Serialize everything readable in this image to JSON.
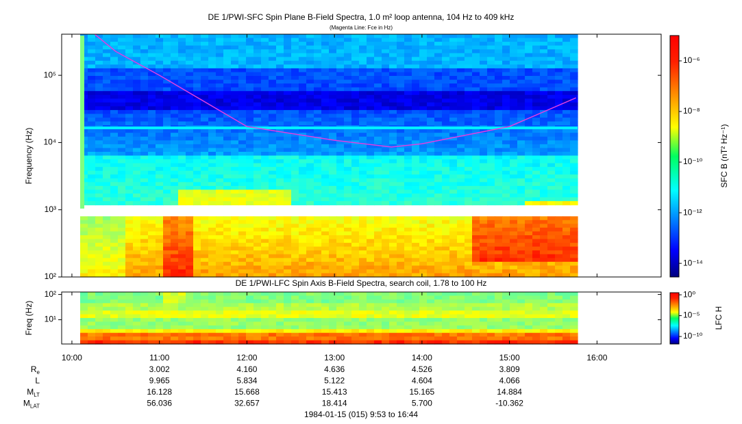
{
  "chart_data": [
    {
      "type": "spectrogram",
      "title": "DE 1/PWI-SFC  Spin Plane B-Field Spectra, 1.0 m² loop antenna, 104 Hz to 409 kHz",
      "subtitle": "(Magenta Line: Fce in Hz)",
      "y_label": "Frequency (Hz)",
      "colorbar_label": "SFC B (nT² Hz⁻¹)",
      "ylog": true,
      "ylim": [
        100,
        409000
      ],
      "yticks": [
        {
          "value": 100,
          "label": "10²"
        },
        {
          "value": 1000,
          "label": "10³"
        },
        {
          "value": 10000,
          "label": "10⁴"
        },
        {
          "value": 100000,
          "label": "10⁵"
        }
      ],
      "zlog": true,
      "zlim": [
        2.9e-15,
        1e-05
      ],
      "zticks": [
        {
          "value": 1e-06,
          "label": "10⁻⁶"
        },
        {
          "value": 1e-08,
          "label": "10⁻⁸"
        },
        {
          "value": 1e-10,
          "label": "10⁻¹⁰"
        },
        {
          "value": 1e-12,
          "label": "10⁻¹²"
        },
        {
          "value": 1e-14,
          "label": "10⁻¹⁴"
        }
      ],
      "fce_line": {
        "color": "#e040e0",
        "x": [
          10.26,
          10.5,
          11.0,
          12.0,
          13.0,
          13.65,
          14.0,
          15.0,
          15.76
        ],
        "values": [
          409000,
          227000,
          100000,
          17300,
          10800,
          8570,
          9600,
          17300,
          46200
        ]
      }
    },
    {
      "type": "spectrogram",
      "title": "DE 1/PWI-LFC  Spin Axis B-Field Spectra, search coil, 1.78 to 100 Hz",
      "y_label": "Freq (Hz)",
      "colorbar_label": "LFC H",
      "ylog": true,
      "ylim": [
        1.1,
        125
      ],
      "yticks": [
        {
          "value": 10,
          "label": "10¹"
        },
        {
          "value": 100,
          "label": "10²"
        }
      ],
      "zlog": true,
      "zlim": [
        1.6e-12,
        3.2
      ],
      "zticks": [
        {
          "value": 1,
          "label": "10⁰"
        },
        {
          "value": 1e-05,
          "label": "10⁻⁵"
        },
        {
          "value": 1e-10,
          "label": "10⁻¹⁰"
        }
      ],
      "xlim": [
        9.883,
        16.733
      ],
      "xticks": [
        {
          "value": 10,
          "label": "10:00"
        },
        {
          "value": 11,
          "label": "11:00"
        },
        {
          "value": 12,
          "label": "12:00"
        },
        {
          "value": 13,
          "label": "13:00"
        },
        {
          "value": 14,
          "label": "14:00"
        },
        {
          "value": 15,
          "label": "15:00"
        },
        {
          "value": 16,
          "label": "16:00"
        }
      ]
    }
  ],
  "orbit_table": {
    "rows": [
      {
        "label": "R",
        "sub": "e",
        "values": [
          "3.002",
          "4.160",
          "4.636",
          "4.526",
          "3.809"
        ]
      },
      {
        "label": "L",
        "values": [
          "9.965",
          "5.834",
          "5.122",
          "4.604",
          "4.066"
        ]
      },
      {
        "label": "M",
        "sub": "LT",
        "values": [
          "16.128",
          "15.668",
          "15.413",
          "15.165",
          "14.884"
        ]
      },
      {
        "label": "M",
        "sub": "LAT",
        "values": [
          "56.036",
          "32.657",
          "18.414",
          "5.700",
          "-10.362"
        ]
      }
    ]
  },
  "footer": "1984-01-15 (015) 9:53 to 16:44"
}
